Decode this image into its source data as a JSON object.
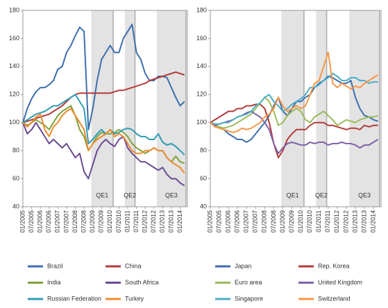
{
  "chart_data": [
    {
      "type": "line",
      "x": [
        "01/2005",
        "04/2005",
        "07/2005",
        "10/2005",
        "01/2006",
        "04/2006",
        "07/2006",
        "10/2006",
        "01/2007",
        "04/2007",
        "07/2007",
        "10/2007",
        "01/2008",
        "04/2008",
        "07/2008",
        "10/2008",
        "01/2009",
        "04/2009",
        "07/2009",
        "10/2009",
        "01/2010",
        "04/2010",
        "07/2010",
        "10/2010",
        "01/2011",
        "04/2011",
        "07/2011",
        "10/2011",
        "01/2012",
        "04/2012",
        "07/2012",
        "10/2012",
        "01/2013",
        "04/2013",
        "07/2013",
        "10/2013",
        "01/2014",
        "04/2014"
      ],
      "xlim": [
        "01/2005",
        "06/2014"
      ],
      "xticks": [
        "01/2005",
        "07/2005",
        "01/2006",
        "07/2006",
        "01/2007",
        "07/2007",
        "01/2008",
        "07/2008",
        "01/2009",
        "07/2009",
        "01/2010",
        "07/2010",
        "01/2011",
        "07/2011",
        "01/2012",
        "07/2012",
        "01/2013",
        "07/2013",
        "01/2014"
      ],
      "ylim": [
        40,
        180
      ],
      "yticks": [
        40,
        60,
        80,
        100,
        120,
        140,
        160,
        180
      ],
      "shaded_periods": [
        {
          "label": "QE1",
          "start": "12/2008",
          "end": "03/2010"
        },
        {
          "label": "QE2",
          "start": "11/2010",
          "end": "06/2011"
        },
        {
          "label": "QE3",
          "start": "09/2012",
          "end": "05/2014"
        }
      ],
      "legend": "bottom",
      "series": [
        {
          "name": "Brazil",
          "color": "#3b6eac",
          "values": [
            100,
            110,
            117,
            122,
            125,
            125,
            127,
            130,
            138,
            140,
            150,
            155,
            162,
            168,
            165,
            95,
            110,
            130,
            145,
            150,
            155,
            150,
            150,
            160,
            165,
            170,
            150,
            145,
            135,
            130,
            130,
            133,
            133,
            132,
            125,
            118,
            112,
            115
          ]
        },
        {
          "name": "China",
          "color": "#b33a3a",
          "values": [
            100,
            101,
            102,
            103,
            104,
            105,
            106,
            108,
            110,
            112,
            115,
            118,
            120,
            121,
            121,
            121,
            121,
            121,
            121,
            121,
            121,
            122,
            123,
            123,
            124,
            125,
            126,
            127,
            128,
            130,
            131,
            132,
            133,
            134,
            135,
            136,
            135,
            134
          ]
        },
        {
          "name": "India",
          "color": "#7da13a",
          "values": [
            100,
            98,
            100,
            102,
            100,
            98,
            95,
            100,
            105,
            108,
            110,
            112,
            105,
            95,
            90,
            80,
            85,
            90,
            93,
            92,
            92,
            93,
            95,
            93,
            90,
            85,
            82,
            80,
            78,
            80,
            82,
            80,
            80,
            75,
            72,
            76,
            72,
            71
          ]
        },
        {
          "name": "South Africa",
          "color": "#6a4a93",
          "values": [
            100,
            92,
            95,
            100,
            95,
            90,
            85,
            88,
            85,
            82,
            85,
            80,
            75,
            78,
            65,
            60,
            70,
            80,
            85,
            88,
            85,
            83,
            88,
            90,
            82,
            78,
            75,
            72,
            72,
            70,
            68,
            66,
            68,
            63,
            60,
            60,
            57,
            55
          ]
        },
        {
          "name": "Russian Federation",
          "color": "#2e9cb5",
          "values": [
            100,
            102,
            104,
            106,
            107,
            108,
            110,
            112,
            112,
            114,
            116,
            118,
            120,
            115,
            110,
            85,
            88,
            92,
            95,
            92,
            95,
            92,
            93,
            95,
            96,
            95,
            92,
            90,
            90,
            88,
            88,
            92,
            86,
            84,
            85,
            83,
            80,
            77
          ]
        },
        {
          "name": "Turkey",
          "color": "#ef8a2c",
          "values": [
            100,
            97,
            100,
            104,
            106,
            95,
            90,
            97,
            100,
            105,
            108,
            110,
            105,
            100,
            95,
            80,
            85,
            88,
            90,
            92,
            95,
            90,
            92,
            90,
            85,
            80,
            78,
            78,
            80,
            80,
            82,
            80,
            80,
            75,
            72,
            70,
            68,
            64
          ]
        }
      ]
    },
    {
      "type": "line",
      "x": [
        "01/2005",
        "04/2005",
        "07/2005",
        "10/2005",
        "01/2006",
        "04/2006",
        "07/2006",
        "10/2006",
        "01/2007",
        "04/2007",
        "07/2007",
        "10/2007",
        "01/2008",
        "04/2008",
        "07/2008",
        "10/2008",
        "01/2009",
        "04/2009",
        "07/2009",
        "10/2009",
        "01/2010",
        "04/2010",
        "07/2010",
        "10/2010",
        "01/2011",
        "04/2011",
        "07/2011",
        "10/2011",
        "01/2012",
        "04/2012",
        "07/2012",
        "10/2012",
        "01/2013",
        "04/2013",
        "07/2013",
        "10/2013",
        "01/2014",
        "04/2014"
      ],
      "xlim": [
        "01/2005",
        "06/2014"
      ],
      "xticks": [
        "01/2005",
        "07/2005",
        "01/2006",
        "07/2006",
        "01/2007",
        "07/2007",
        "01/2008",
        "07/2008",
        "01/2009",
        "07/2009",
        "01/2010",
        "07/2010",
        "01/2011",
        "07/2011",
        "01/2012",
        "07/2012",
        "01/2013",
        "07/2013",
        "01/2014"
      ],
      "ylim": [
        40,
        180
      ],
      "yticks": [
        40,
        60,
        80,
        100,
        120,
        140,
        160,
        180
      ],
      "shaded_periods": [
        {
          "label": "QE1",
          "start": "12/2008",
          "end": "03/2010"
        },
        {
          "label": "QE2",
          "start": "11/2010",
          "end": "06/2011"
        },
        {
          "label": "QE3",
          "start": "09/2012",
          "end": "05/2014"
        }
      ],
      "legend": "bottom",
      "series": [
        {
          "name": "Japan",
          "color": "#3b6eac",
          "values": [
            100,
            98,
            96,
            95,
            92,
            90,
            88,
            88,
            86,
            88,
            92,
            96,
            100,
            105,
            112,
            118,
            108,
            105,
            110,
            115,
            115,
            118,
            120,
            125,
            128,
            130,
            133,
            132,
            130,
            128,
            128,
            130,
            118,
            110,
            105,
            104,
            102,
            101
          ]
        },
        {
          "name": "Rep. Korea",
          "color": "#b33a3a",
          "values": [
            100,
            102,
            104,
            106,
            108,
            108,
            110,
            110,
            112,
            112,
            113,
            113,
            110,
            100,
            85,
            75,
            80,
            88,
            92,
            95,
            95,
            95,
            98,
            100,
            100,
            100,
            98,
            98,
            97,
            96,
            95,
            96,
            96,
            95,
            98,
            97,
            98,
            98
          ]
        },
        {
          "name": "Euro area",
          "color": "#9bbb59",
          "values": [
            100,
            98,
            97,
            96,
            97,
            98,
            100,
            102,
            104,
            106,
            110,
            114,
            118,
            115,
            108,
            98,
            100,
            105,
            108,
            110,
            108,
            102,
            100,
            104,
            106,
            108,
            105,
            102,
            98,
            100,
            102,
            101,
            100,
            102,
            103,
            104,
            104,
            105
          ]
        },
        {
          "name": "United Kingdom",
          "color": "#7f62a8",
          "values": [
            100,
            98,
            99,
            100,
            101,
            102,
            104,
            105,
            107,
            108,
            106,
            104,
            100,
            95,
            85,
            78,
            82,
            85,
            86,
            85,
            84,
            84,
            86,
            85,
            86,
            86,
            84,
            85,
            85,
            86,
            85,
            85,
            84,
            82,
            84,
            84,
            86,
            88
          ]
        },
        {
          "name": "Singapore",
          "color": "#4bacc6",
          "values": [
            100,
            99,
            99,
            100,
            100,
            102,
            104,
            105,
            106,
            108,
            112,
            114,
            118,
            120,
            115,
            112,
            108,
            110,
            113,
            115,
            117,
            120,
            125,
            125,
            127,
            130,
            132,
            135,
            133,
            130,
            130,
            132,
            132,
            130,
            130,
            128,
            129,
            129
          ]
        },
        {
          "name": "Switzerland",
          "color": "#f79646",
          "values": [
            100,
            97,
            96,
            95,
            94,
            93,
            94,
            96,
            95,
            96,
            98,
            100,
            104,
            106,
            110,
            118,
            112,
            108,
            110,
            112,
            110,
            112,
            120,
            128,
            130,
            140,
            150,
            128,
            125,
            128,
            126,
            124,
            126,
            125,
            128,
            130,
            132,
            134
          ]
        }
      ]
    }
  ]
}
